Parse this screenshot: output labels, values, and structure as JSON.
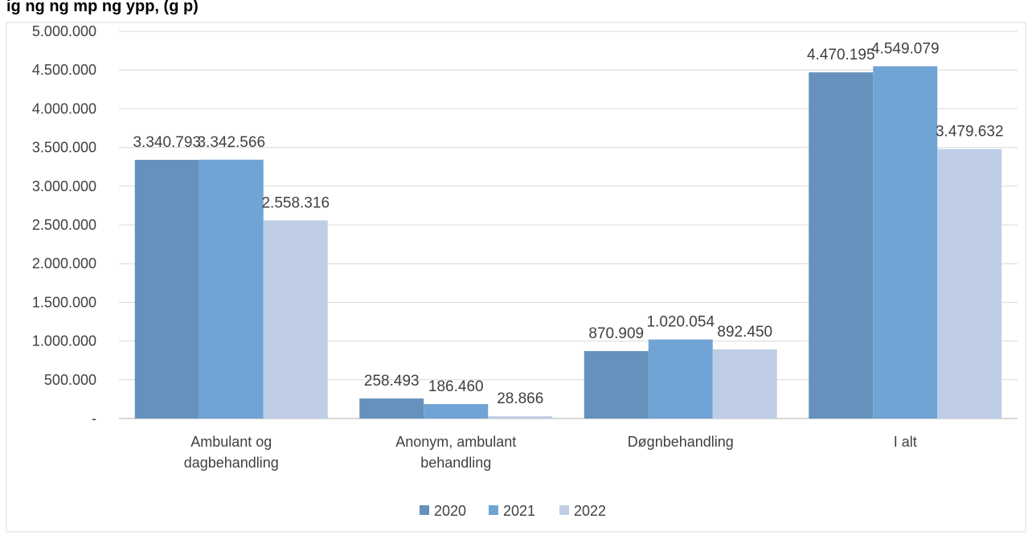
{
  "chart_data": {
    "type": "bar",
    "title": "",
    "title_partial": "ig   ng                    ng   mp      ng ypp,               (g     p)",
    "xlabel": "",
    "ylabel": "",
    "categories": [
      [
        "Ambulant og",
        "dagbehandling"
      ],
      [
        "Anonym, ambulant",
        "behandling"
      ],
      [
        "Døgnbehandling"
      ],
      [
        "I alt"
      ]
    ],
    "series": [
      {
        "name": "2020",
        "color": "#6591BC",
        "values": [
          3340793,
          258493,
          870909,
          4470195
        ],
        "labels": [
          "3.340.793",
          "258.493",
          "870.909",
          "4.470.195"
        ]
      },
      {
        "name": "2021",
        "color": "#6FA4D4",
        "values": [
          3342566,
          186460,
          1020054,
          4549079
        ],
        "labels": [
          "3.342.566",
          "186.460",
          "1.020.054",
          "4.549.079"
        ]
      },
      {
        "name": "2022",
        "color": "#C0CDE6",
        "values": [
          2558316,
          28866,
          892450,
          3479632
        ],
        "labels": [
          "2.558.316",
          "28.866",
          "892.450",
          "3.479.632"
        ]
      }
    ],
    "ylim": [
      0,
      5000000
    ],
    "yticks": [
      {
        "value": 0,
        "label": "-"
      },
      {
        "value": 500000,
        "label": "500.000"
      },
      {
        "value": 1000000,
        "label": "1.000.000"
      },
      {
        "value": 1500000,
        "label": "1.500.000"
      },
      {
        "value": 2000000,
        "label": "2.000.000"
      },
      {
        "value": 2500000,
        "label": "2.500.000"
      },
      {
        "value": 3000000,
        "label": "3.000.000"
      },
      {
        "value": 3500000,
        "label": "3.500.000"
      },
      {
        "value": 4000000,
        "label": "4.000.000"
      },
      {
        "value": 4500000,
        "label": "4.500.000"
      },
      {
        "value": 5000000,
        "label": "5.000.000"
      }
    ],
    "grid": true,
    "legend_position": "bottom",
    "colors": {
      "gridline": "#D9D9D9",
      "axis": "#BFBFBF",
      "frame": "#D9D9D9"
    }
  }
}
